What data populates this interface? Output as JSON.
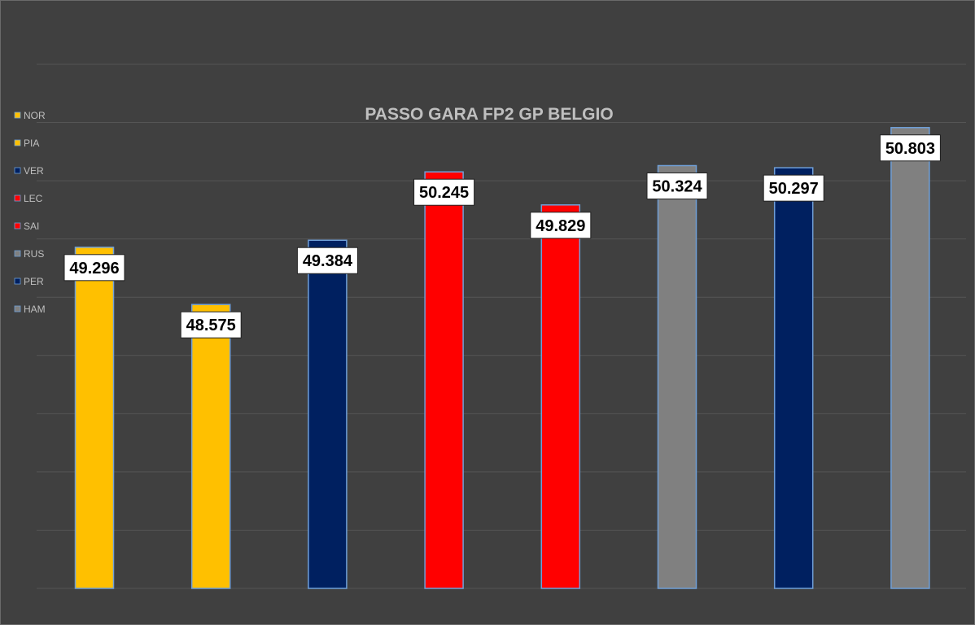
{
  "chart_data": {
    "type": "bar",
    "title": "PASSO GARA FP2 GP BELGIO",
    "categories": [
      "NOR",
      "PIA",
      "VER",
      "LEC",
      "SAI",
      "RUS",
      "PER",
      "HAM"
    ],
    "values": [
      49.296,
      48.575,
      49.384,
      50.245,
      49.829,
      50.324,
      50.297,
      50.803
    ],
    "colors": [
      "#FFC000",
      "#FFC000",
      "#002060",
      "#FF0000",
      "#FF0000",
      "#808080",
      "#002060",
      "#808080"
    ],
    "value_labels": [
      "49.296",
      "48.575",
      "49.384",
      "50.245",
      "49.829",
      "50.324",
      "50.297",
      "50.803"
    ],
    "ylim": [
      45,
      51.6
    ],
    "grid": true,
    "legend": "left",
    "xlabel": "",
    "ylabel": ""
  }
}
